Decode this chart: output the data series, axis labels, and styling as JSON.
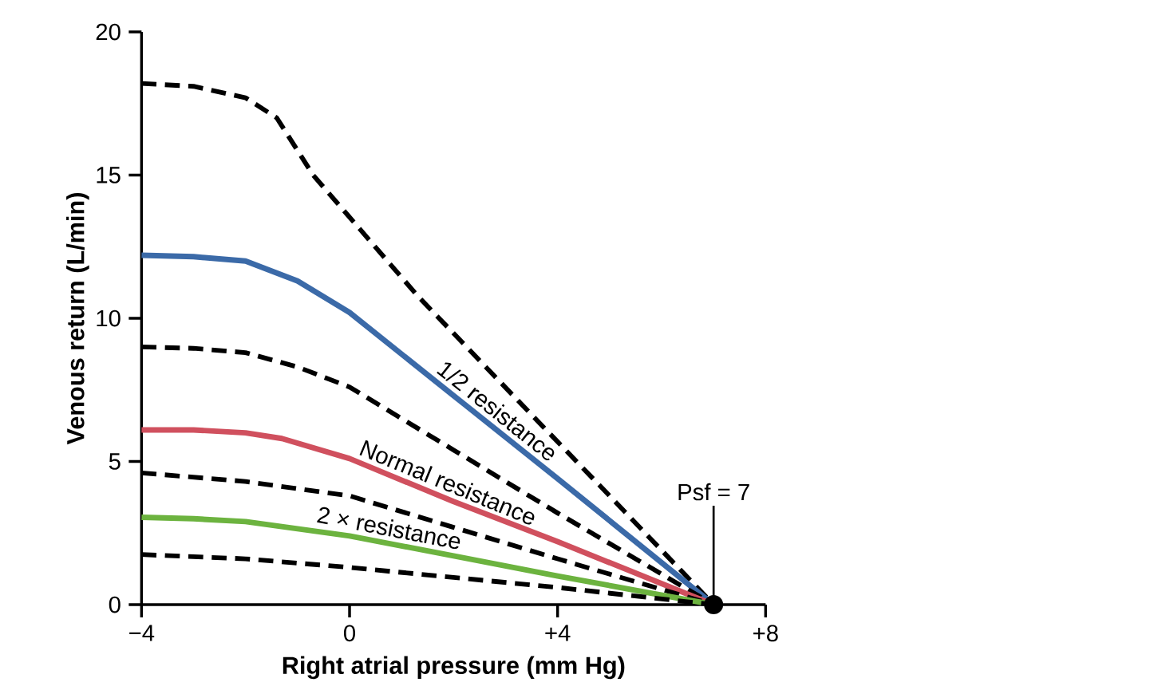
{
  "chart_data": {
    "type": "line",
    "xlabel": "Right atrial pressure (mm Hg)",
    "ylabel": "Venous return (L/min)",
    "xlim": [
      -4,
      8
    ],
    "ylim": [
      0,
      20
    ],
    "xticks": [
      {
        "value": -4,
        "label": "−4"
      },
      0,
      {
        "value": 4,
        "label": "+4"
      },
      {
        "value": 8,
        "label": "+8"
      }
    ],
    "yticks": [
      0,
      5,
      10,
      15,
      20
    ],
    "series": [
      {
        "color": "#000000",
        "line_style": "dashed",
        "x": [
          -4,
          -3,
          -2,
          -1.4,
          -0.7,
          1.3,
          3.2,
          5,
          7
        ],
        "values": [
          18.2,
          18.1,
          17.7,
          17.0,
          15.0,
          10.8,
          7.2,
          3.8,
          0
        ]
      },
      {
        "name": "1/2 resistance",
        "color": "#3b6aa8",
        "line_style": "solid",
        "x": [
          -4,
          -3,
          -2,
          -1,
          0,
          2,
          4,
          7
        ],
        "values": [
          12.2,
          12.15,
          12.0,
          11.3,
          10.2,
          7.3,
          4.4,
          0
        ]
      },
      {
        "color": "#000000",
        "line_style": "dashed",
        "x": [
          -4,
          -3,
          -2,
          -1,
          0,
          2,
          4,
          7
        ],
        "values": [
          9.0,
          8.95,
          8.8,
          8.3,
          7.6,
          5.4,
          3.2,
          0
        ]
      },
      {
        "name": "Normal resistance",
        "color": "#d0505e",
        "line_style": "solid",
        "x": [
          -4,
          -3,
          -2,
          -1.3,
          0,
          2,
          4,
          7
        ],
        "values": [
          6.1,
          6.1,
          6.0,
          5.8,
          5.1,
          3.6,
          2.2,
          0
        ]
      },
      {
        "color": "#000000",
        "line_style": "dashed",
        "x": [
          -4,
          -2,
          0,
          2,
          4,
          7
        ],
        "values": [
          4.6,
          4.3,
          3.8,
          2.7,
          1.6,
          0
        ]
      },
      {
        "name": "2 × resistance",
        "color": "#6cb33f",
        "line_style": "solid",
        "x": [
          -4,
          -3,
          -2,
          0,
          2,
          4,
          7
        ],
        "values": [
          3.05,
          3.0,
          2.9,
          2.4,
          1.7,
          1.0,
          0
        ]
      },
      {
        "color": "#000000",
        "line_style": "dashed",
        "x": [
          -4,
          -2,
          0,
          2,
          4,
          7
        ],
        "values": [
          1.75,
          1.6,
          1.3,
          0.95,
          0.6,
          0
        ]
      }
    ],
    "annotations": [
      {
        "text": "Psf = 7",
        "x": 7,
        "y": 0
      }
    ]
  }
}
